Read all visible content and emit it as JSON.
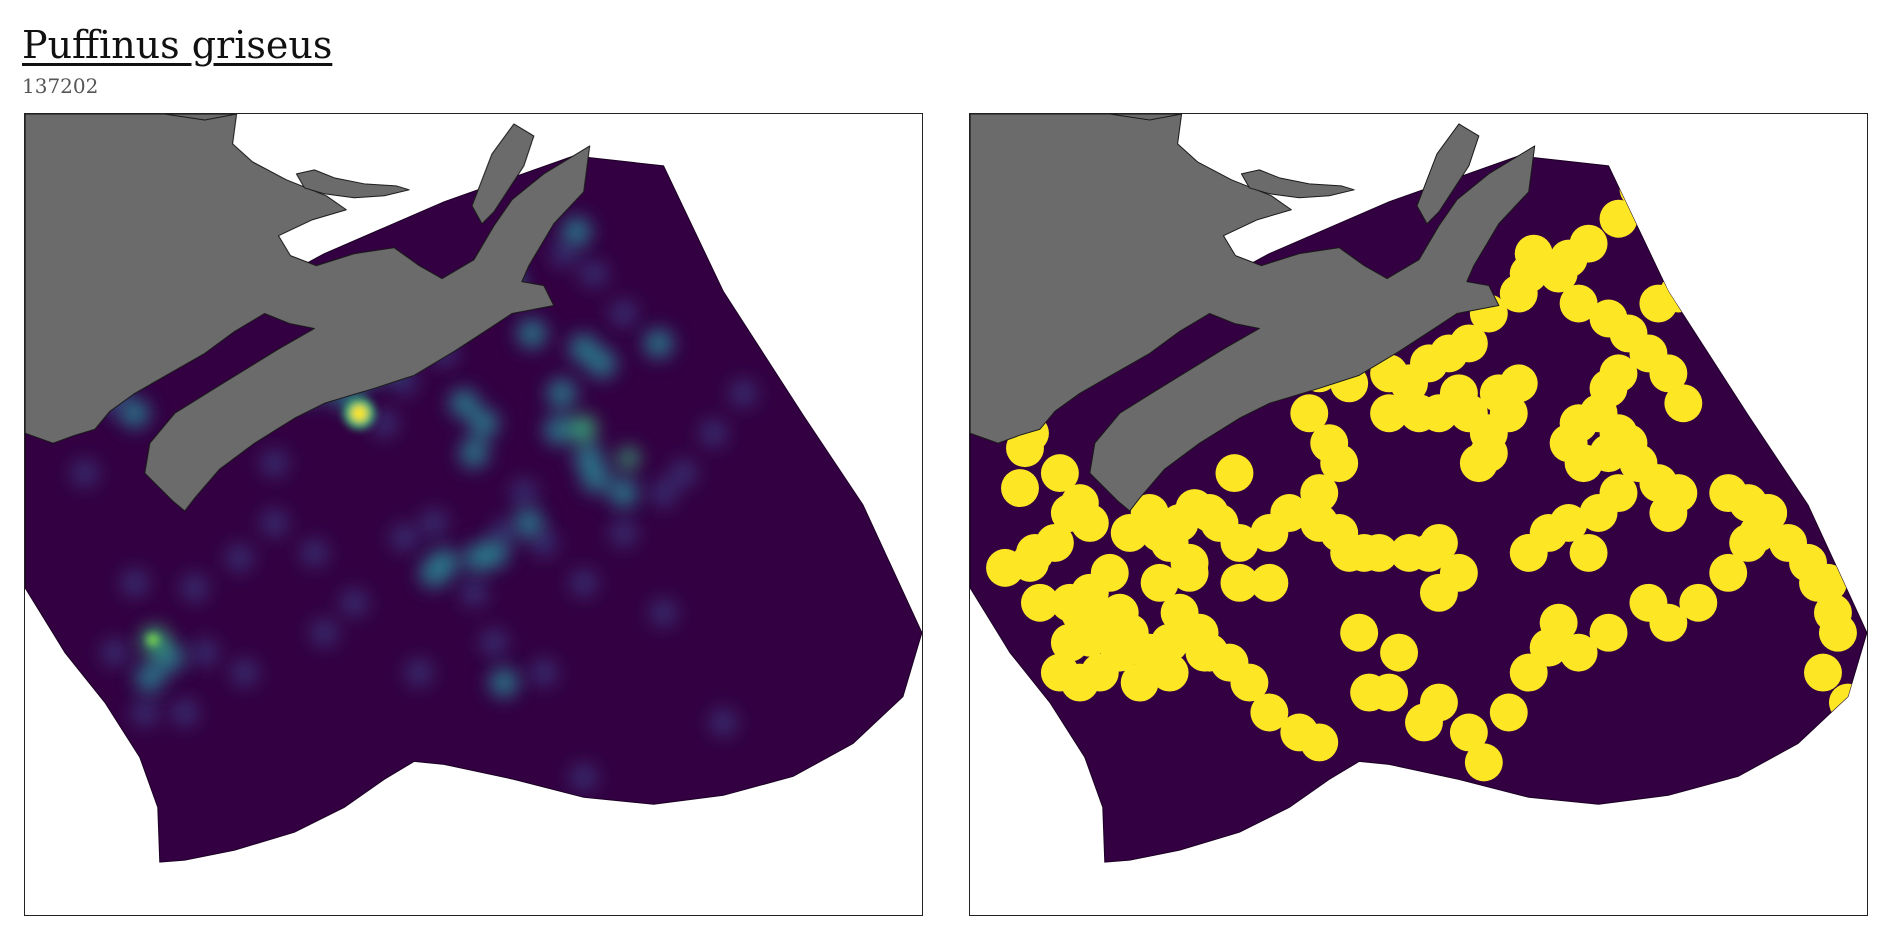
{
  "header": {
    "title": "Puffinus griseus",
    "subtitle": "137202"
  },
  "colors": {
    "land": "#6b6b6b",
    "coast_line": "#1a1a1a",
    "ocean_base": "#330142",
    "hotspot_mid": "#2b7f8e",
    "hotspot_hi": "#39b37a",
    "hotspot_peak": "#fde725",
    "presence": "#fde725",
    "frame": "#222222"
  },
  "maps": [
    {
      "panel": "left",
      "layer": "density"
    },
    {
      "panel": "right",
      "layer": "presence"
    }
  ]
}
